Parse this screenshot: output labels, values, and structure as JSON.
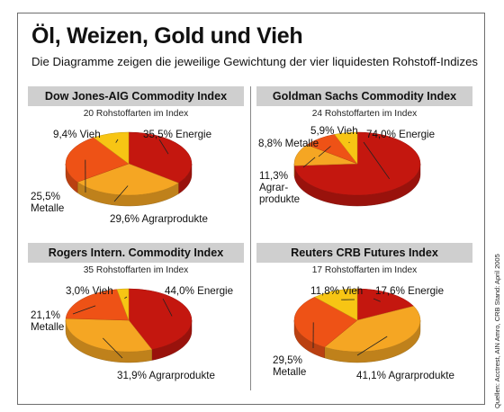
{
  "title": "Öl, Weizen, Gold und Vieh",
  "subtitle": "Die Diagramme zeigen die jeweilige Gewichtung der vier liquidesten Rohstoff-Indizes",
  "source": "Quellen: Acctrest, AIN Amro, CRB Stand: April 2005",
  "colors": {
    "Energie": "#c4170f",
    "Agrarprodukte": "#f5a623",
    "Metalle": "#ee5216",
    "Vieh": "#f7c514"
  },
  "chart_data": [
    {
      "type": "pie",
      "title": "Dow Jones-AIG Commodity Index",
      "subtitle": "20 Rohstoffarten im Index",
      "slices": [
        {
          "category": "Energie",
          "value": 35.5,
          "label_lines": [
            "35,5% Energie"
          ]
        },
        {
          "category": "Agrarprodukte",
          "value": 29.6,
          "label_lines": [
            "29,6% Agrarprodukte"
          ]
        },
        {
          "category": "Metalle",
          "value": 25.5,
          "label_lines": [
            "25,5%",
            "Metalle"
          ]
        },
        {
          "category": "Vieh",
          "value": 9.4,
          "label_lines": [
            "9,4% Vieh"
          ]
        }
      ]
    },
    {
      "type": "pie",
      "title": "Goldman Sachs Commodity Index",
      "subtitle": "24 Rohstoffarten im Index",
      "slices": [
        {
          "category": "Energie",
          "value": 74.0,
          "label_lines": [
            "74,0% Energie"
          ]
        },
        {
          "category": "Agrarprodukte",
          "value": 11.3,
          "label_lines": [
            "11,3%",
            "Agrar-",
            "produkte"
          ]
        },
        {
          "category": "Metalle",
          "value": 8.8,
          "label_lines": [
            "8,8% Metalle"
          ]
        },
        {
          "category": "Vieh",
          "value": 5.9,
          "label_lines": [
            "5,9% Vieh"
          ]
        }
      ]
    },
    {
      "type": "pie",
      "title": "Rogers Intern. Commodity Index",
      "subtitle": "35 Rohstoffarten im Index",
      "slices": [
        {
          "category": "Energie",
          "value": 44.0,
          "label_lines": [
            "44,0% Energie"
          ]
        },
        {
          "category": "Agrarprodukte",
          "value": 31.9,
          "label_lines": [
            "31,9% Agrarprodukte"
          ]
        },
        {
          "category": "Metalle",
          "value": 21.1,
          "label_lines": [
            "21,1%",
            "Metalle"
          ]
        },
        {
          "category": "Vieh",
          "value": 3.0,
          "label_lines": [
            "3,0% Vieh"
          ]
        }
      ]
    },
    {
      "type": "pie",
      "title": "Reuters CRB Futures Index",
      "subtitle": "17 Rohstoffarten im Index",
      "slices": [
        {
          "category": "Energie",
          "value": 17.6,
          "label_lines": [
            "17,6% Energie"
          ]
        },
        {
          "category": "Agrarprodukte",
          "value": 41.1,
          "label_lines": [
            "41,1% Agrarprodukte"
          ]
        },
        {
          "category": "Metalle",
          "value": 29.5,
          "label_lines": [
            "29,5%",
            "Metalle"
          ]
        },
        {
          "category": "Vieh",
          "value": 11.8,
          "label_lines": [
            "11,8% Vieh"
          ]
        }
      ]
    }
  ]
}
